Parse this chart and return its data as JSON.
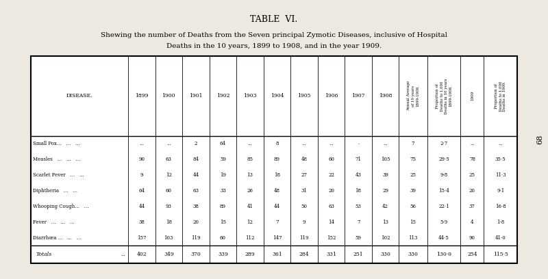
{
  "title": "TABLE  VI.",
  "subtitle1": "Shewing the number of Deaths from the Seven principal Zymotic Diseases, inclusive of Hospital",
  "subtitle2": "Deaths in the 10 years, 1899 to 1908, and in the year 1909.",
  "page_number": "68",
  "bg_color": "#ede9e0",
  "col_headers_years": [
    "1899",
    "1900",
    "1901",
    "1902",
    "1903",
    "1904",
    "1905",
    "1906",
    "1907",
    "1908"
  ],
  "col_headers_extra": [
    "Annual Average\nof 10 years\n1899-1908.",
    "Proportion of\nDeaths to 1,000\nDeaths in 10 years\n1899-1908.",
    "1909",
    "Proportion of\nDeaths to 1,000\nDeaths in 1909."
  ],
  "diseases": [
    "Small Pox...   ...   ...",
    "Measles   ...   ...   ...",
    "Scarlet Fever   ...   ...",
    "Diphtheria   ...   ...",
    "Whooping Cough...   ...",
    "Fever   ...   ...   ...",
    "Diarrhœa ...   ...   ..."
  ],
  "data": [
    [
      "...",
      "...",
      "2",
      "64",
      "...",
      "8",
      "...",
      "...",
      "·",
      "...",
      "7",
      "2·7",
      "...",
      "..."
    ],
    [
      "90",
      "63",
      "84",
      "59",
      "85",
      "89",
      "48",
      "60",
      "71",
      "105",
      "75",
      "29·5",
      "78",
      "35·5"
    ],
    [
      "9",
      "12",
      "44",
      "19",
      "13",
      "18",
      "27",
      "22",
      "43",
      "39",
      "25",
      "9·8",
      "25",
      "11·3"
    ],
    [
      "64",
      "60",
      "63",
      "33",
      "26",
      "48",
      "31",
      "20",
      "18",
      "29",
      "39",
      "15·4",
      "20",
      "9·1"
    ],
    [
      "44",
      "93",
      "38",
      "89",
      "41",
      "44",
      "50",
      "63",
      "53",
      "42",
      "56",
      "22·1",
      "37",
      "16·8"
    ],
    [
      "38",
      "18",
      "20",
      "15",
      "12",
      "7",
      "9",
      "14",
      "7",
      "13",
      "15",
      "5·9",
      "4",
      "1·8"
    ],
    [
      "157",
      "103",
      "119",
      "60",
      "112",
      "147",
      "119",
      "152",
      "59",
      "102",
      "113",
      "44·5",
      "90",
      "41·0"
    ]
  ],
  "totals": [
    "402",
    "349",
    "370",
    "339",
    "289",
    "361",
    "284",
    "331",
    "251",
    "330",
    "330",
    "130·0",
    "254",
    "115·5"
  ]
}
